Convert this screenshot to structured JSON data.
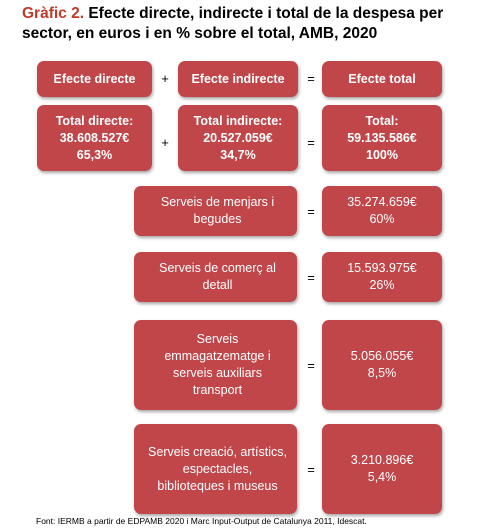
{
  "title": {
    "prefix": "Gràfic 2.",
    "text": " Efecte directe, indirecte i total de la despesa per sector, en euros i en % sobre el total, AMB, 2020"
  },
  "header_row": {
    "direct": "Efecte directe",
    "plus": "+",
    "indirect": "Efecte indirecte",
    "equals": "=",
    "total": "Efecte total"
  },
  "totals_row": {
    "direct": {
      "label": "Total directe:",
      "value": "38.608.527€",
      "pct": "65,3%"
    },
    "plus": "+",
    "indirect": {
      "label": "Total indirecte:",
      "value": "20.527.059€",
      "pct": "34,7%"
    },
    "equals": "=",
    "total": {
      "label": "Total:",
      "value": "59.135.586€",
      "pct": "100%"
    }
  },
  "sectors": [
    {
      "name": "Serveis de menjars i begudes",
      "equals": "=",
      "value": "35.274.659€",
      "pct": "60%"
    },
    {
      "name": "Serveis de comerç al detall",
      "equals": "=",
      "value": "15.593.975€",
      "pct": "26%"
    },
    {
      "name": "Serveis emmagatzematge i serveis auxiliars transport",
      "equals": "=",
      "value": "5.056.055€",
      "pct": "8,5%"
    },
    {
      "name": "Serveis creació, artístics, espectacles, biblioteques i museus",
      "equals": "=",
      "value": "3.210.896€",
      "pct": "5,4%"
    }
  ],
  "source": "Font: IERMB a partir de EDPAMB 2020 i Marc Input-Output de Catalunya 2011, Idescat."
}
